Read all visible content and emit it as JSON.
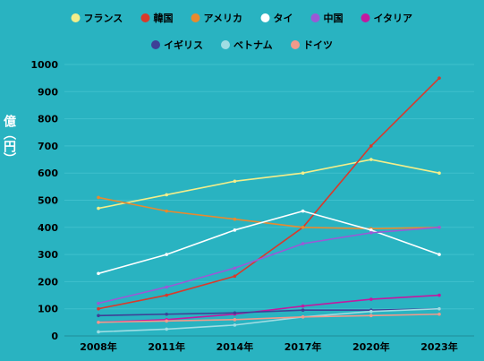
{
  "chart_data": {
    "type": "line",
    "title": "",
    "xlabel": "",
    "ylabel": "億（円）",
    "ylim": [
      0,
      1000
    ],
    "yticks": [
      0,
      100,
      200,
      300,
      400,
      500,
      600,
      700,
      800,
      900,
      1000
    ],
    "categories": [
      "2008年",
      "2011年",
      "2014年",
      "2017年",
      "2020年",
      "2023年"
    ],
    "grid": "horizontal",
    "legend_position": "top",
    "background": "#29b3c1",
    "gridline_color": "#3fc0cc",
    "series": [
      {
        "name": "フランス",
        "color": "#f3ee8a",
        "values": [
          470,
          520,
          570,
          600,
          650,
          600
        ]
      },
      {
        "name": "韓国",
        "color": "#d93a2b",
        "values": [
          100,
          150,
          220,
          400,
          700,
          950
        ]
      },
      {
        "name": "アメリカ",
        "color": "#e88a2e",
        "values": [
          510,
          460,
          430,
          400,
          395,
          400
        ]
      },
      {
        "name": "タイ",
        "color": "#ffffff",
        "values": [
          230,
          300,
          390,
          460,
          390,
          300
        ]
      },
      {
        "name": "中国",
        "color": "#9b59d6",
        "values": [
          120,
          180,
          250,
          340,
          380,
          400
        ]
      },
      {
        "name": "イタリア",
        "color": "#c21aa0",
        "values": [
          50,
          60,
          80,
          110,
          135,
          150
        ]
      },
      {
        "name": "イギリス",
        "color": "#3e3f96",
        "values": [
          75,
          80,
          85,
          95,
          95,
          100
        ]
      },
      {
        "name": "ベトナム",
        "color": "#9fdde3",
        "values": [
          15,
          25,
          40,
          70,
          90,
          100
        ]
      },
      {
        "name": "ドイツ",
        "color": "#f29a8a",
        "values": [
          50,
          55,
          60,
          70,
          75,
          80
        ]
      }
    ]
  }
}
